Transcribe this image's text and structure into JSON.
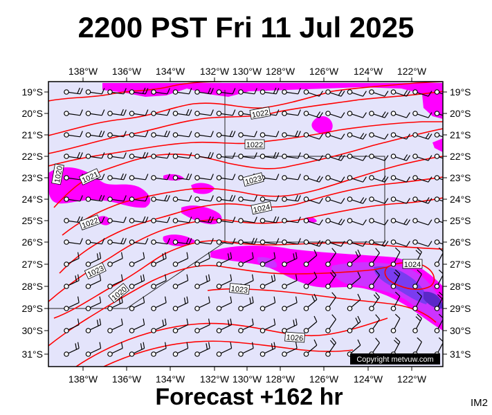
{
  "title": "2200 PST Fri 11 Jul 2025",
  "footer": "Forecast +162 hr",
  "code": "IM2",
  "copyright": "Copyright metvuw.com",
  "longitudes": [
    "138°W",
    "136°W",
    "134°W",
    "132°W",
    "130°W",
    "128°W",
    "126°W",
    "124°W",
    "122°W"
  ],
  "latitudes": [
    "19°S",
    "20°S",
    "21°S",
    "22°S",
    "23°S",
    "24°S",
    "25°S",
    "26°S",
    "27°S",
    "28°S",
    "29°S",
    "30°S",
    "31°S"
  ],
  "isobar_labels": [
    "1020",
    "1021",
    "1022",
    "1022",
    "1023",
    "1024",
    "1022",
    "1023",
    "1020",
    "1023",
    "1026",
    "1024"
  ],
  "colors": {
    "ocean": "#e4e4fb",
    "rain_light": "#ff00ff",
    "rain_medium": "#cc33ff",
    "rain_heavy": "#7a3cf0",
    "isobar": "#ff0000",
    "frame": "#000000"
  }
}
